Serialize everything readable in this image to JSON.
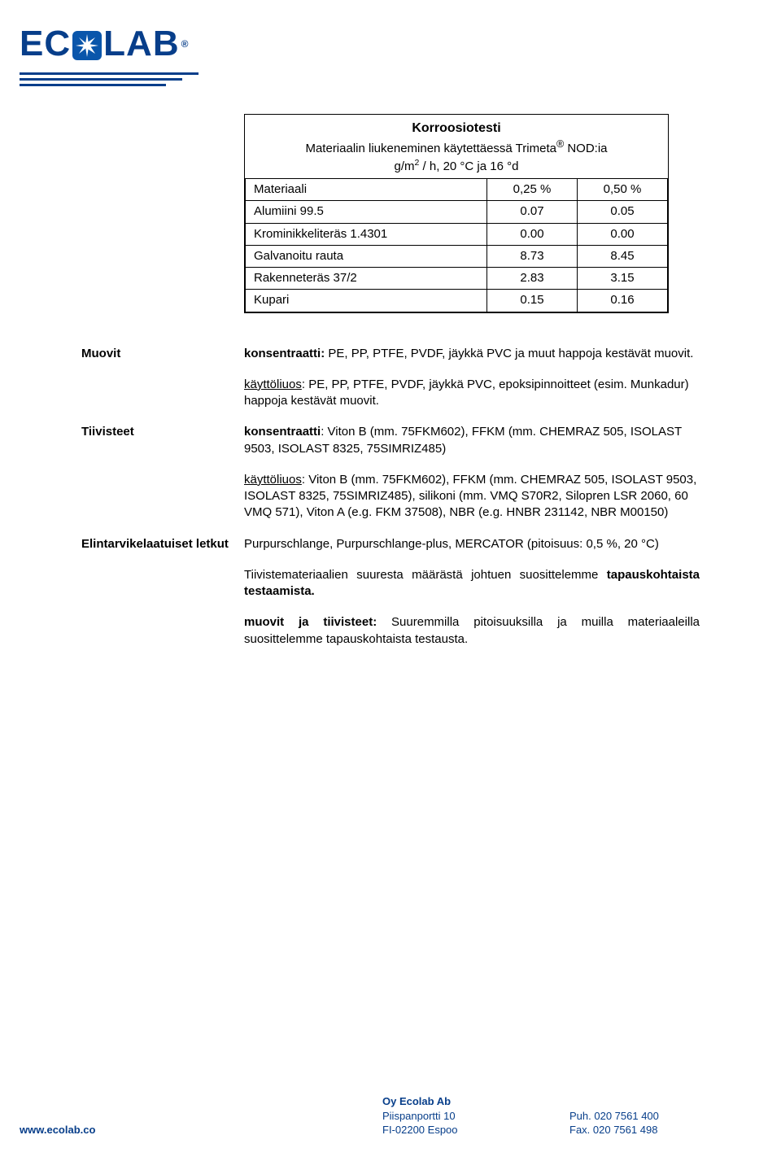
{
  "logo": {
    "text": "ECOLAB",
    "registered": "®"
  },
  "corrosion": {
    "title": "Korroosiotesti",
    "subtitle1": "Materiaalin liukeneminen käytettäessä Trimeta® NOD:ia",
    "subtitle2_prefix": "g/m",
    "subtitle2_sup": "2",
    "subtitle2_suffix": " / h, 20 °C ja 16 °d",
    "columns": [
      "Materiaali",
      "0,25 %",
      "0,50 %"
    ],
    "rows": [
      [
        "Alumiini 99.5",
        "0.07",
        "0.05"
      ],
      [
        "Krominikkeliteräs 1.4301",
        "0.00",
        "0.00"
      ],
      [
        "Galvanoitu rauta",
        "8.73",
        "8.45"
      ],
      [
        "Rakenneteräs 37/2",
        "2.83",
        "3.15"
      ],
      [
        "Kupari",
        "0.15",
        "0.16"
      ]
    ]
  },
  "defs": {
    "muovit": {
      "term": "Muovit",
      "p1_html": "<b>konsentraatti:</b> PE, PP, PTFE, PVDF, jäykkä PVC ja muut happoja kestävät muovit.",
      "p2_html": "<u>käyttöliuos</u>: PE, PP, PTFE, PVDF, jäykkä PVC, epoksipinnoitteet (esim. Munkadur) happoja kestävät muovit."
    },
    "tiivisteet": {
      "term": "Tiivisteet",
      "p1_html": "<b>konsentraatti</b>: Viton B (mm. 75FKM602), FFKM (mm. CHEMRAZ 505, ISOLAST 9503, ISOLAST 8325, 75SIMRIZ485)",
      "p2_html": "<u>käyttöliuos</u>: Viton B (mm. 75FKM602), FFKM (mm. CHEMRAZ 505, ISOLAST 9503, ISOLAST 8325, 75SIMRIZ485), silikoni (mm. VMQ S70R2, Silopren LSR 2060, 60 VMQ 571), Viton A (e.g. FKM 37508), NBR (e.g. HNBR 231142, NBR M00150)"
    },
    "letkut": {
      "term": "Elintarvikelaatuiset letkut",
      "p1_html": "Purpurschlange, Purpurschlange-plus, MERCATOR (pitoisuus: 0,5 %, 20 °C)",
      "p2_html": "Tiivistemateriaalien suuresta määrästä johtuen suosittelemme <b>tapauskohtaista testaamista.</b>",
      "p3_html": "<b>muovit ja tiivisteet:</b> Suuremmilla pitoisuuksilla ja muilla materiaaleilla suosittelemme tapauskohtaista testausta."
    }
  },
  "footer": {
    "website": "www.ecolab.co",
    "company": "Oy Ecolab Ab",
    "street": "Piispanportti 10",
    "city": "FI-02200 Espoo",
    "phone": "Puh. 020 7561 400",
    "fax": "Fax. 020 7561 498"
  }
}
